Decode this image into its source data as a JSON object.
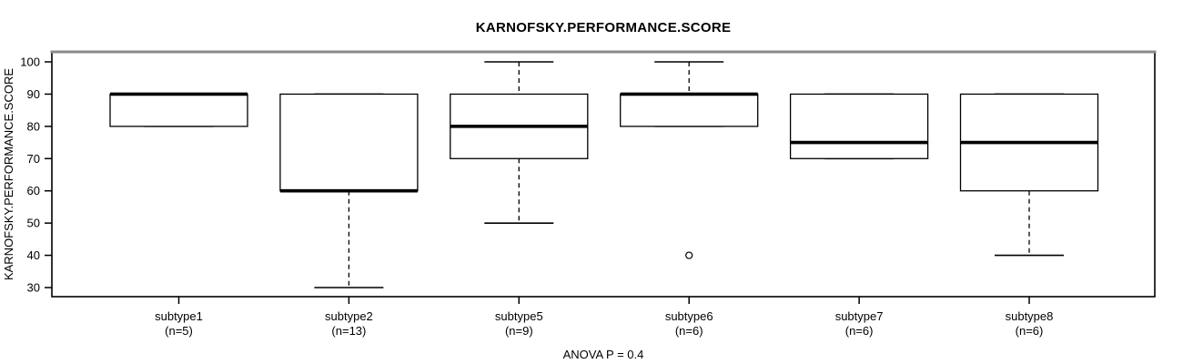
{
  "chart_data": {
    "type": "boxplot",
    "title": "KARNOFSKY.PERFORMANCE.SCORE",
    "ylabel": "KARNOFSKY.PERFORMANCE.SCORE",
    "footer": "ANOVA P = 0.4",
    "yticks": [
      30,
      40,
      50,
      60,
      70,
      80,
      90,
      100
    ],
    "ylim": [
      27,
      103
    ],
    "grid": false,
    "colors": {
      "box_stroke": "#000000",
      "box_fill": "#ffffff",
      "median": "#000000",
      "whisker": "#000000",
      "border": "#000000",
      "border_top": "#8a8a8a",
      "background": "#ffffff"
    },
    "groups": [
      {
        "label": "subtype1",
        "sublabel": "(n=5)",
        "n": 5,
        "whisker_low": 80,
        "q1": 80,
        "median": 90,
        "q3": 90,
        "whisker_high": 90,
        "outliers": []
      },
      {
        "label": "subtype2",
        "sublabel": "(n=13)",
        "n": 13,
        "whisker_low": 30,
        "q1": 60,
        "median": 60,
        "q3": 90,
        "whisker_high": 90,
        "outliers": []
      },
      {
        "label": "subtype5",
        "sublabel": "(n=9)",
        "n": 9,
        "whisker_low": 50,
        "q1": 70,
        "median": 80,
        "q3": 90,
        "whisker_high": 100,
        "outliers": []
      },
      {
        "label": "subtype6",
        "sublabel": "(n=6)",
        "n": 6,
        "whisker_low": 80,
        "q1": 80,
        "median": 90,
        "q3": 90,
        "whisker_high": 100,
        "outliers": [
          40
        ]
      },
      {
        "label": "subtype7",
        "sublabel": "(n=6)",
        "n": 6,
        "whisker_low": 70,
        "q1": 70,
        "median": 75,
        "q3": 90,
        "whisker_high": 90,
        "outliers": []
      },
      {
        "label": "subtype8",
        "sublabel": "(n=6)",
        "n": 6,
        "whisker_low": 40,
        "q1": 60,
        "median": 75,
        "q3": 90,
        "whisker_high": 90,
        "outliers": []
      }
    ]
  }
}
